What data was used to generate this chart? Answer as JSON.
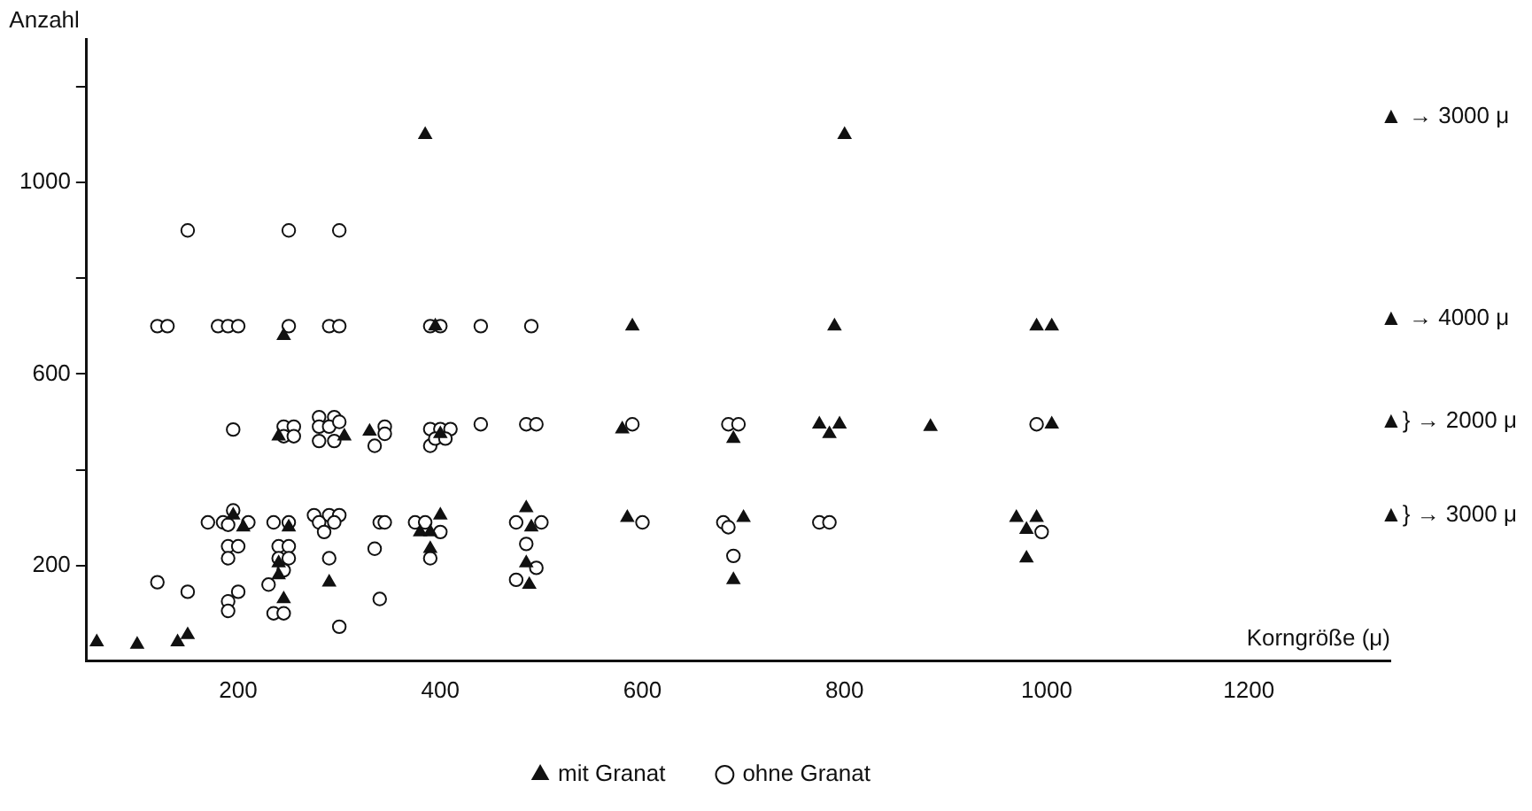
{
  "chart_data": {
    "type": "scatter",
    "xlabel": "Korngröße (μ)",
    "ylabel": "Anzahl",
    "xlim": [
      50,
      1340
    ],
    "ylim": [
      0,
      1300
    ],
    "xticks": [
      200,
      400,
      600,
      800,
      1000,
      1200
    ],
    "yticks": [
      200,
      {
        "value": 400,
        "label": null
      },
      600,
      {
        "value": 800,
        "label": null
      },
      1000,
      {
        "value": 1200,
        "label": null
      }
    ],
    "grid": false,
    "legend": "bottom",
    "series": [
      {
        "name": "mit Granat",
        "color": "#111111",
        "marker": "triangle",
        "x": [
          60,
          100,
          140,
          150,
          240,
          305,
          330,
          400,
          205,
          195,
          250,
          240,
          240,
          245,
          290,
          380,
          390,
          400,
          390,
          490,
          485,
          485,
          488,
          385,
          800,
          245,
          395,
          590,
          790,
          990,
          1005,
          580,
          690,
          775,
          795,
          785,
          885,
          1005,
          585,
          700,
          690,
          970,
          990,
          980,
          980
        ],
        "values": [
          40,
          35,
          40,
          55,
          470,
          470,
          480,
          475,
          280,
          305,
          280,
          205,
          180,
          130,
          165,
          270,
          270,
          305,
          235,
          280,
          320,
          205,
          160,
          1100,
          1100,
          680,
          700,
          700,
          700,
          700,
          700,
          485,
          465,
          495,
          495,
          475,
          490,
          495,
          300,
          300,
          170,
          300,
          300,
          275,
          215
        ]
      },
      {
        "name": "ohne Granat",
        "color": "#111111",
        "marker": "circle",
        "x": [
          150,
          250,
          300,
          120,
          130,
          180,
          190,
          200,
          250,
          290,
          300,
          390,
          400,
          440,
          490,
          195,
          245,
          255,
          245,
          255,
          280,
          295,
          280,
          290,
          300,
          280,
          295,
          345,
          335,
          345,
          390,
          400,
          410,
          390,
          395,
          405,
          440,
          485,
          495,
          170,
          185,
          195,
          190,
          210,
          190,
          200,
          190,
          120,
          150,
          200,
          190,
          190,
          235,
          250,
          240,
          250,
          240,
          250,
          245,
          230,
          235,
          245,
          275,
          290,
          300,
          280,
          295,
          285,
          290,
          300,
          340,
          345,
          335,
          340,
          375,
          385,
          400,
          390,
          475,
          500,
          485,
          475,
          495,
          590,
          685,
          695,
          600,
          680,
          685,
          690,
          775,
          785,
          990,
          995
        ],
        "values": [
          900,
          900,
          900,
          700,
          700,
          700,
          700,
          700,
          700,
          700,
          700,
          700,
          700,
          700,
          700,
          484,
          490,
          490,
          470,
          470,
          510,
          510,
          490,
          490,
          500,
          460,
          460,
          490,
          450,
          475,
          485,
          485,
          485,
          450,
          465,
          465,
          495,
          495,
          495,
          290,
          290,
          315,
          285,
          290,
          240,
          240,
          215,
          165,
          145,
          145,
          125,
          105,
          290,
          290,
          240,
          240,
          215,
          215,
          190,
          160,
          100,
          100,
          305,
          305,
          305,
          290,
          290,
          270,
          215,
          72,
          290,
          290,
          235,
          130,
          290,
          290,
          270,
          215,
          290,
          290,
          245,
          170,
          195,
          495,
          495,
          495,
          290,
          290,
          280,
          220,
          290,
          290,
          495,
          270
        ]
      }
    ],
    "annotations": [
      "▲ → 3000 μ",
      "▲ → 4000 μ",
      "▲} → 2000 μ",
      "▲} → 3000 μ"
    ]
  }
}
